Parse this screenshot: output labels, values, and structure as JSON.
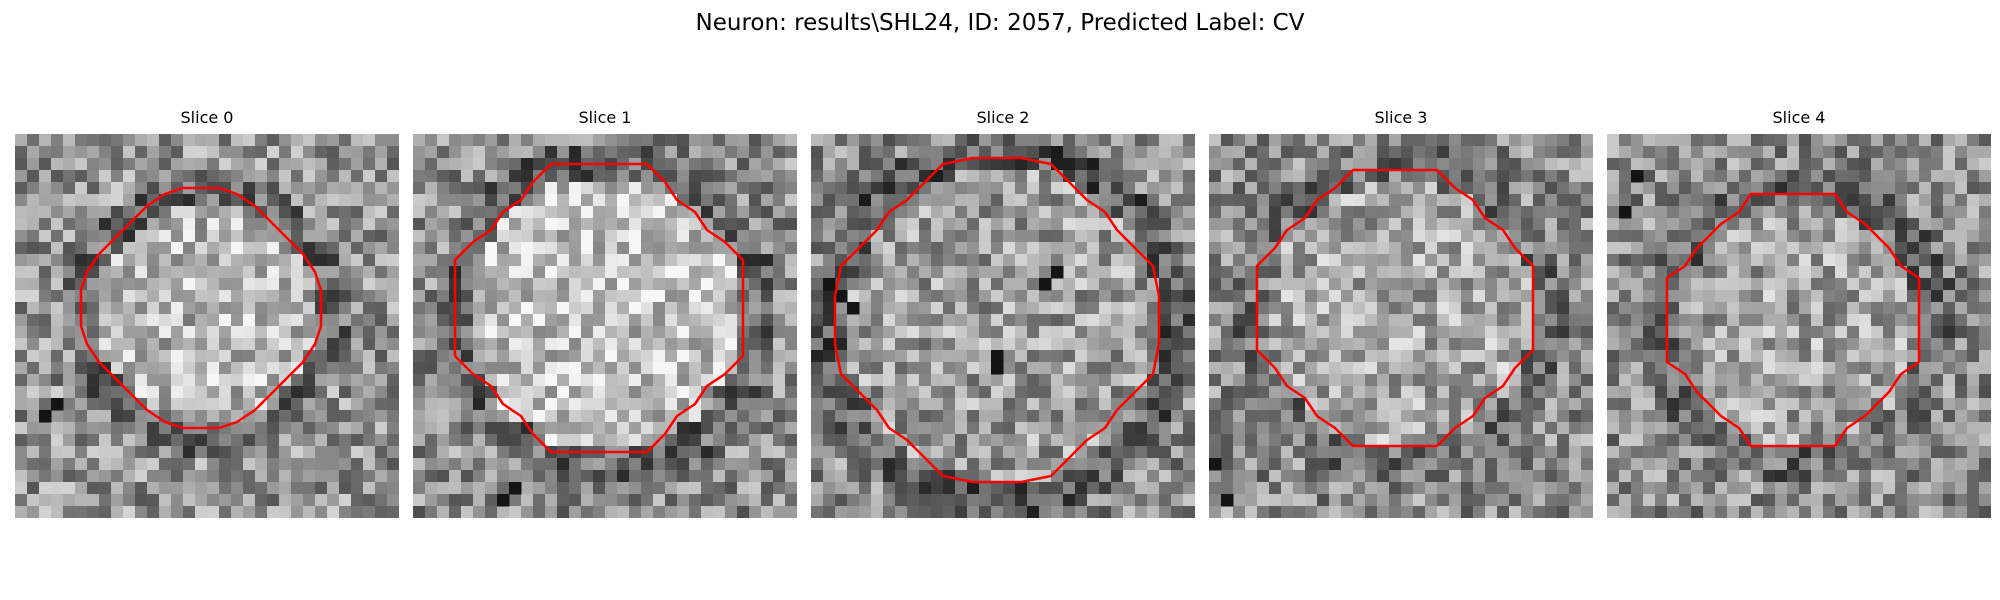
{
  "figure": {
    "title": "Neuron: results\\SHL24, ID: 2057, Predicted Label: CV"
  },
  "panels": [
    {
      "title": "Slice 0"
    },
    {
      "title": "Slice 1"
    },
    {
      "title": "Slice 2"
    },
    {
      "title": "Slice 3"
    },
    {
      "title": "Slice 4"
    }
  ],
  "colors": {
    "contour": "#ff0000",
    "background": "#ffffff"
  }
}
